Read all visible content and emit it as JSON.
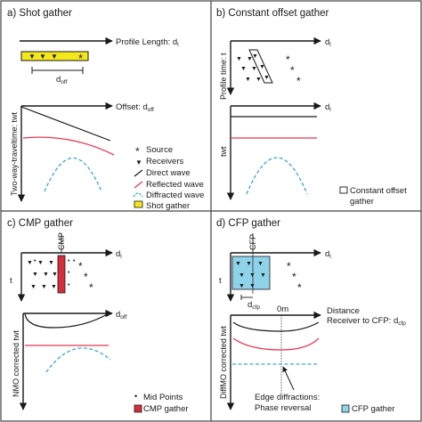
{
  "panels": {
    "a": {
      "title": "a) Shot gather",
      "profile_length": "Profile Length: d",
      "profile_length_sub": "l",
      "d_off": "d",
      "d_off_sub": "off",
      "offset": "Offset: d",
      "offset_sub": "off",
      "ylabel": "Two-way-traveltime: twt"
    },
    "b": {
      "title": "b) Constant offset gather",
      "d_l": "d",
      "d_l_sub": "l",
      "profile_time": "Profile time: t",
      "d_l2": "d",
      "d_l2_sub": "l",
      "ylabel": "twt"
    },
    "c": {
      "title": "c) CMP gather",
      "cmp_label": "CMP",
      "d_l": "d",
      "d_l_sub": "l",
      "t_label": "t",
      "d_off": "d",
      "d_off_sub": "off",
      "ylabel": "NMO corrected twt"
    },
    "d": {
      "title": "d) CFP gather",
      "cfp_label": "CFP",
      "d_l": "d",
      "d_l_sub": "l",
      "t_label": "t",
      "d_cfp": "d",
      "d_cfp_sub": "cfp",
      "zero_m": "0m",
      "distance": "Distance",
      "receiver_to_cfp": "Receiver to CFP: d",
      "receiver_to_cfp_sub": "cfp",
      "ylabel": "DiffMO corrected twt",
      "edge_diffractions": "Edge diffractions:",
      "phase_reversal": "Phase reversal"
    }
  },
  "legend_main": {
    "source": "Source",
    "receivers": "Receivers",
    "direct_wave": "Direct wave",
    "reflected_wave": "Reflected wave",
    "diffracted_wave": "Diffracted wave",
    "shot_gather": "Shot gather"
  },
  "legend_b": {
    "line1": "Constant offset",
    "line2": "gather"
  },
  "legend_c": {
    "mid_points": "Mid Points",
    "cmp_gather": "CMP gather"
  },
  "legend_d": {
    "cfp_gather": "CFP gather"
  },
  "symbols": {
    "source": "*",
    "receiver": "▼",
    "midpoint": "•"
  },
  "colors": {
    "reflected": "#e8384f",
    "diffracted": "#3aa6d8",
    "shot_fill": "#f4e81c",
    "cmp_fill": "#d42f3b",
    "cfp_fill": "#8fd3ea",
    "line": "#1a1a1a"
  }
}
